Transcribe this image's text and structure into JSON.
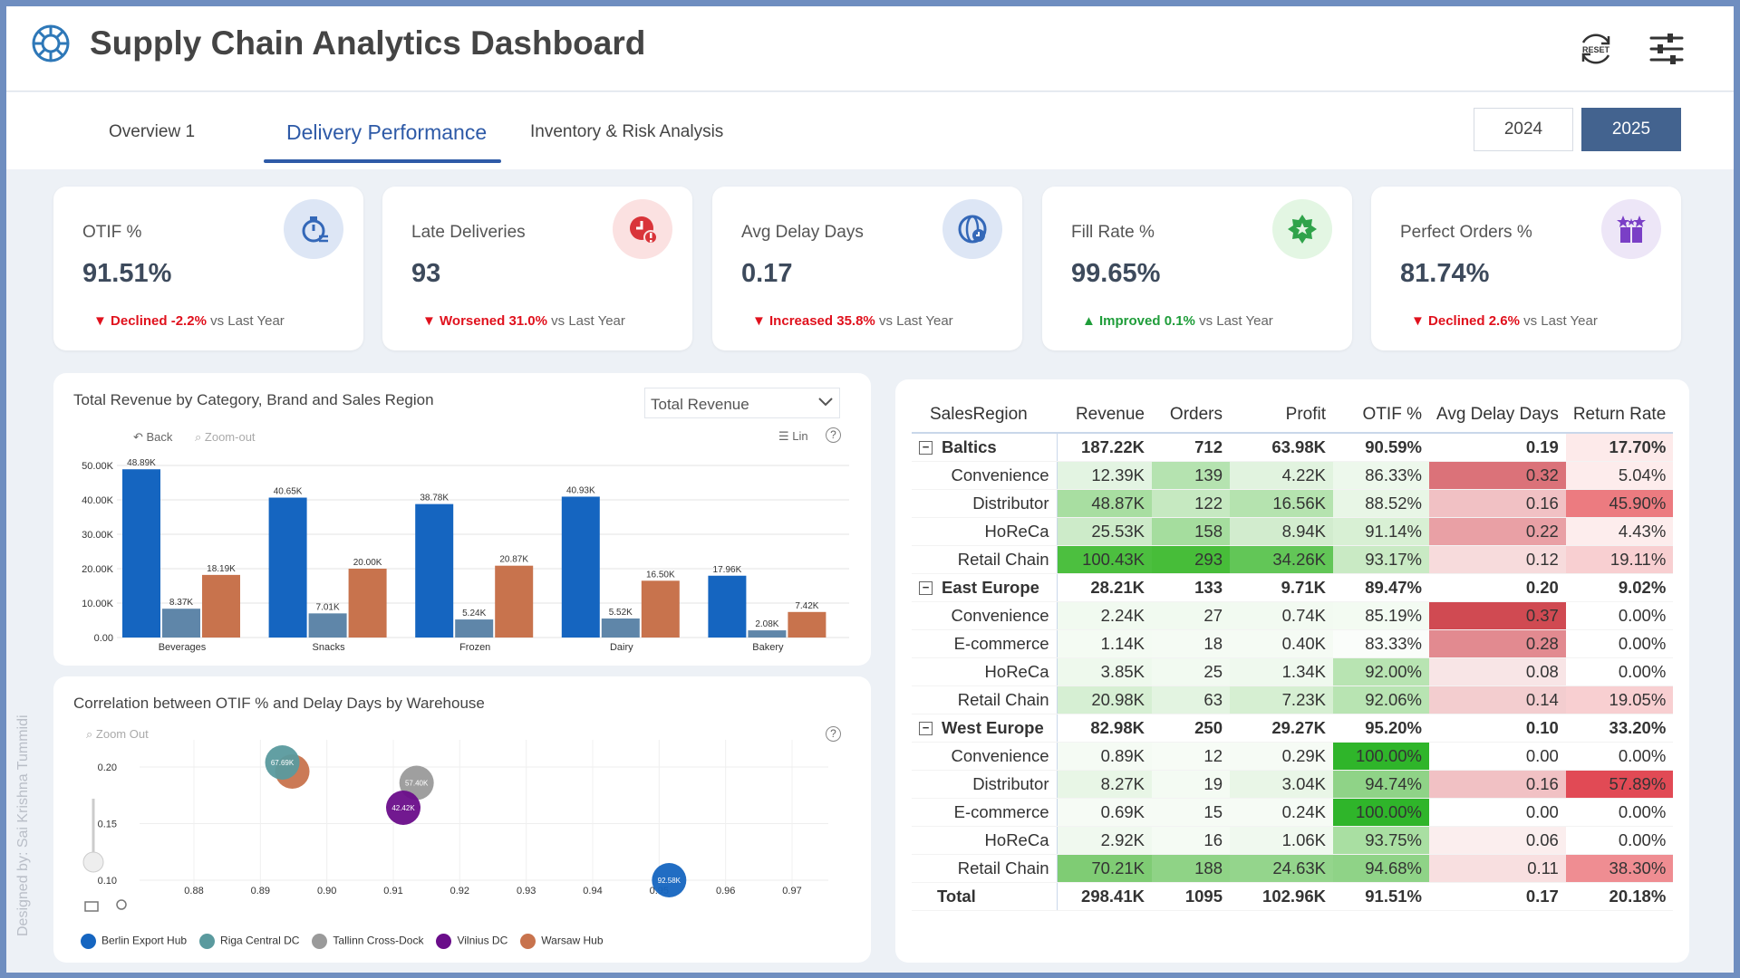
{
  "header": {
    "title": "Supply Chain Analytics Dashboard",
    "reset_label": "RESET"
  },
  "tabs": [
    {
      "label": "Overview 1"
    },
    {
      "label": "Delivery Performance"
    },
    {
      "label": "Inventory & Risk Analysis"
    }
  ],
  "years": [
    "2024",
    "2025"
  ],
  "kpis": [
    {
      "label": "OTIF %",
      "value": "91.51%",
      "word": "Declined",
      "pct": "-2.2%",
      "dir": "down",
      "suffix": "vs Last Year",
      "icon": "stopwatch-icon",
      "icon_bg": "#dde6f5",
      "icon_color": "#3468b8"
    },
    {
      "label": "Late Deliveries",
      "value": "93",
      "word": "Worsened",
      "pct": "31.0%",
      "dir": "down",
      "suffix": "vs Last Year",
      "icon": "late-clock-icon",
      "icon_bg": "#fbe1e1",
      "icon_color": "#d9343a"
    },
    {
      "label": "Avg Delay Days",
      "value": "0.17",
      "word": "Increased",
      "pct": "35.8%",
      "dir": "down",
      "suffix": "vs Last Year",
      "icon": "delay-globe-icon",
      "icon_bg": "#dde6f5",
      "icon_color": "#3468b8"
    },
    {
      "label": "Fill Rate %",
      "value": "99.65%",
      "word": "Improved",
      "pct": "0.1%",
      "dir": "up",
      "suffix": "vs Last Year",
      "icon": "badge-star-icon",
      "icon_bg": "#e3f6e3",
      "icon_color": "#2fa34a"
    },
    {
      "label": "Perfect Orders %",
      "value": "81.74%",
      "word": "Declined",
      "pct": "2.6%",
      "dir": "down",
      "suffix": "vs Last Year",
      "icon": "gift-stars-icon",
      "icon_bg": "#ede6f7",
      "icon_color": "#7a3fc6"
    }
  ],
  "bar_panel": {
    "title": "Total Revenue by Category, Brand and Sales Region",
    "dropdown": "Total Revenue",
    "back": "Back",
    "zoom_out": "Zoom-out",
    "lin": "Lin",
    "help": "?"
  },
  "scatter_panel": {
    "title": "Correlation between OTIF % and Delay Days by Warehouse",
    "zoom_out": "Zoom Out",
    "help": "?"
  },
  "chart_data": [
    {
      "type": "bar",
      "categories": [
        "Beverages",
        "Snacks",
        "Frozen",
        "Dairy",
        "Bakery"
      ],
      "series": [
        {
          "values": [
            48.89,
            40.65,
            38.78,
            40.93,
            17.96
          ],
          "labels": [
            "48.89K",
            "40.65K",
            "38.78K",
            "40.93K",
            "17.96K"
          ],
          "color": "#1565c0"
        },
        {
          "values": [
            8.37,
            7.01,
            5.24,
            5.52,
            2.08
          ],
          "labels": [
            "8.37K",
            "7.01K",
            "5.24K",
            "5.52K",
            "2.08K"
          ],
          "color": "#5f86a9"
        },
        {
          "values": [
            18.19,
            20.0,
            20.87,
            16.5,
            7.42
          ],
          "labels": [
            "18.19K",
            "20.00K",
            "20.87K",
            "16.50K",
            "7.42K"
          ],
          "color": "#c8734d"
        }
      ],
      "ylim": [
        0,
        50
      ],
      "yticks": [
        "0.00",
        "10.00K",
        "20.00K",
        "30.00K",
        "40.00K",
        "50.00K"
      ],
      "grid": true
    },
    {
      "type": "scatter",
      "xticks": [
        "0.88",
        "0.89",
        "0.90",
        "0.91",
        "0.92",
        "0.93",
        "0.94",
        "0.95",
        "0.96",
        "0.97"
      ],
      "xlim": [
        0.88,
        0.97
      ],
      "yticks": [
        "0.10",
        "0.15",
        "0.20"
      ],
      "ylim": [
        0.1,
        0.2
      ],
      "legend_position": "bottom",
      "series": [
        {
          "name": "Berlin Export Hub",
          "color": "#1565c0",
          "points": [
            {
              "x": 0.9515,
              "y": 0.1,
              "label": "92.58K"
            }
          ]
        },
        {
          "name": "Riga Central DC",
          "color": "#5a9a9e",
          "points": [
            {
              "x": 0.8933,
              "y": 0.204,
              "label": "67.69K"
            }
          ]
        },
        {
          "name": "Tallinn Cross-Dock",
          "color": "#9a9a9a",
          "points": [
            {
              "x": 0.9135,
              "y": 0.186,
              "label": "57.40K"
            }
          ]
        },
        {
          "name": "Vilnius DC",
          "color": "#6a0d8a",
          "points": [
            {
              "x": 0.9115,
              "y": 0.164,
              "label": "42.42K"
            }
          ]
        },
        {
          "name": "Warsaw Hub",
          "color": "#c8734d",
          "points": [
            {
              "x": 0.8948,
              "y": 0.196,
              "label": ""
            }
          ]
        }
      ]
    }
  ],
  "matrix": {
    "headers": [
      "SalesRegion",
      "Revenue",
      "Orders",
      "Profit",
      "OTIF %",
      "Avg Delay Days",
      "Return Rate"
    ],
    "rows": [
      {
        "g": 1,
        "c": [
          "Baltics",
          "187.22K",
          "712",
          "63.98K",
          "90.59%",
          "0.19",
          "17.70%"
        ],
        "bg": [
          "",
          "",
          "",
          "",
          "",
          "",
          "#fdeaea"
        ]
      },
      {
        "g": 0,
        "c": [
          "Convenience",
          "12.39K",
          "139",
          "4.22K",
          "86.33%",
          "0.32",
          "5.04%"
        ],
        "bg": [
          "",
          "#e3f4e2",
          "#b5e3b0",
          "#e1f3df",
          "#edf8ec",
          "#db7279",
          "#fdecec"
        ]
      },
      {
        "g": 0,
        "c": [
          "Distributor",
          "48.87K",
          "122",
          "16.56K",
          "88.52%",
          "0.16",
          "45.90%"
        ],
        "bg": [
          "",
          "#a8dea1",
          "#c6e9c1",
          "#b5e3af",
          "#e8f6e6",
          "#f1c1c4",
          "#ec7b80"
        ]
      },
      {
        "g": 0,
        "c": [
          "HoReCa",
          "25.53K",
          "158",
          "8.94K",
          "91.14%",
          "0.22",
          "4.43%"
        ],
        "bg": [
          "",
          "#cdebc9",
          "#a5dd9e",
          "#d2ecce",
          "#d8f0d4",
          "#e9a0a5",
          "#fdeded"
        ]
      },
      {
        "g": 0,
        "c": [
          "Retail Chain",
          "100.43K",
          "293",
          "34.26K",
          "93.17%",
          "0.12",
          "19.11%"
        ],
        "bg": [
          "",
          "#4cbf3f",
          "#47bd39",
          "#62c657",
          "#c9eac4",
          "#f7dbdc",
          "#f8cfd1"
        ]
      },
      {
        "g": 1,
        "c": [
          "East Europe",
          "28.21K",
          "133",
          "9.71K",
          "89.47%",
          "0.20",
          "9.02%"
        ],
        "bg": [
          "",
          "",
          "",
          "",
          "",
          "",
          ""
        ]
      },
      {
        "g": 0,
        "c": [
          "Convenience",
          "2.24K",
          "27",
          "0.74K",
          "85.19%",
          "0.37",
          "0.00%"
        ],
        "bg": [
          "",
          "#f1faf0",
          "#f1faf0",
          "#f2faf1",
          "#f3fbf2",
          "#d04a52",
          ""
        ]
      },
      {
        "g": 0,
        "c": [
          "E-commerce",
          "1.14K",
          "18",
          "0.40K",
          "83.33%",
          "0.28",
          "0.00%"
        ],
        "bg": [
          "",
          "#f4fbf3",
          "#f5fbf4",
          "#f5fbf4",
          "#fafdfa",
          "#e28a90",
          ""
        ]
      },
      {
        "g": 0,
        "c": [
          "HoReCa",
          "3.85K",
          "25",
          "1.34K",
          "92.00%",
          "0.08",
          "0.00%"
        ],
        "bg": [
          "",
          "#eef9ed",
          "#f2faf1",
          "#eff9ee",
          "#b8e4b2",
          "#f8e5e6",
          ""
        ]
      },
      {
        "g": 0,
        "c": [
          "Retail Chain",
          "20.98K",
          "63",
          "7.23K",
          "92.06%",
          "0.14",
          "19.05%"
        ],
        "bg": [
          "",
          "#d6efd3",
          "#e3f4e1",
          "#d6efd2",
          "#b8e4b2",
          "#f3cdcf",
          "#f8cfd1"
        ]
      },
      {
        "g": 1,
        "c": [
          "West Europe",
          "82.98K",
          "250",
          "29.27K",
          "95.20%",
          "0.10",
          "33.20%"
        ],
        "bg": [
          "",
          "",
          "",
          "",
          "",
          "",
          ""
        ]
      },
      {
        "g": 0,
        "c": [
          "Convenience",
          "0.89K",
          "12",
          "0.29K",
          "100.00%",
          "0.00",
          "0.00%"
        ],
        "bg": [
          "",
          "#f5fbf4",
          "#f7fcf6",
          "#f6fbf5",
          "#2fb52a",
          "",
          ""
        ]
      },
      {
        "g": 0,
        "c": [
          "Distributor",
          "8.27K",
          "19",
          "3.04K",
          "94.74%",
          "0.16",
          "57.89%"
        ],
        "bg": [
          "",
          "#e8f6e6",
          "#f4fbf3",
          "#e9f6e7",
          "#8fd387",
          "#f1c1c4",
          "#e14a55"
        ]
      },
      {
        "g": 0,
        "c": [
          "E-commerce",
          "0.69K",
          "15",
          "0.24K",
          "100.00%",
          "0.00",
          "0.00%"
        ],
        "bg": [
          "",
          "#f6fbf5",
          "#f6fbf5",
          "#f6fbf5",
          "#2fb52a",
          "",
          ""
        ]
      },
      {
        "g": 0,
        "c": [
          "HoReCa",
          "2.92K",
          "16",
          "1.06K",
          "93.75%",
          "0.06",
          "0.00%"
        ],
        "bg": [
          "",
          "#f0f9ef",
          "#f5fbf4",
          "#f0f9ef",
          "#a9dfa2",
          "#fbeeee",
          ""
        ]
      },
      {
        "g": 0,
        "c": [
          "Retail Chain",
          "70.21K",
          "188",
          "24.63K",
          "94.68%",
          "0.11",
          "38.30%"
        ],
        "bg": [
          "",
          "#7fcc74",
          "#8fd386",
          "#94d58c",
          "#8fd387",
          "#f8dfe0",
          "#ef8d92"
        ]
      },
      {
        "t": 1,
        "c": [
          "Total",
          "298.41K",
          "1095",
          "102.96K",
          "91.51%",
          "0.17",
          "20.18%"
        ],
        "bg": [
          "",
          "",
          "",
          "",
          "",
          "",
          ""
        ]
      }
    ]
  },
  "watermark": "Designed by: Sai Krishna Tummidi"
}
